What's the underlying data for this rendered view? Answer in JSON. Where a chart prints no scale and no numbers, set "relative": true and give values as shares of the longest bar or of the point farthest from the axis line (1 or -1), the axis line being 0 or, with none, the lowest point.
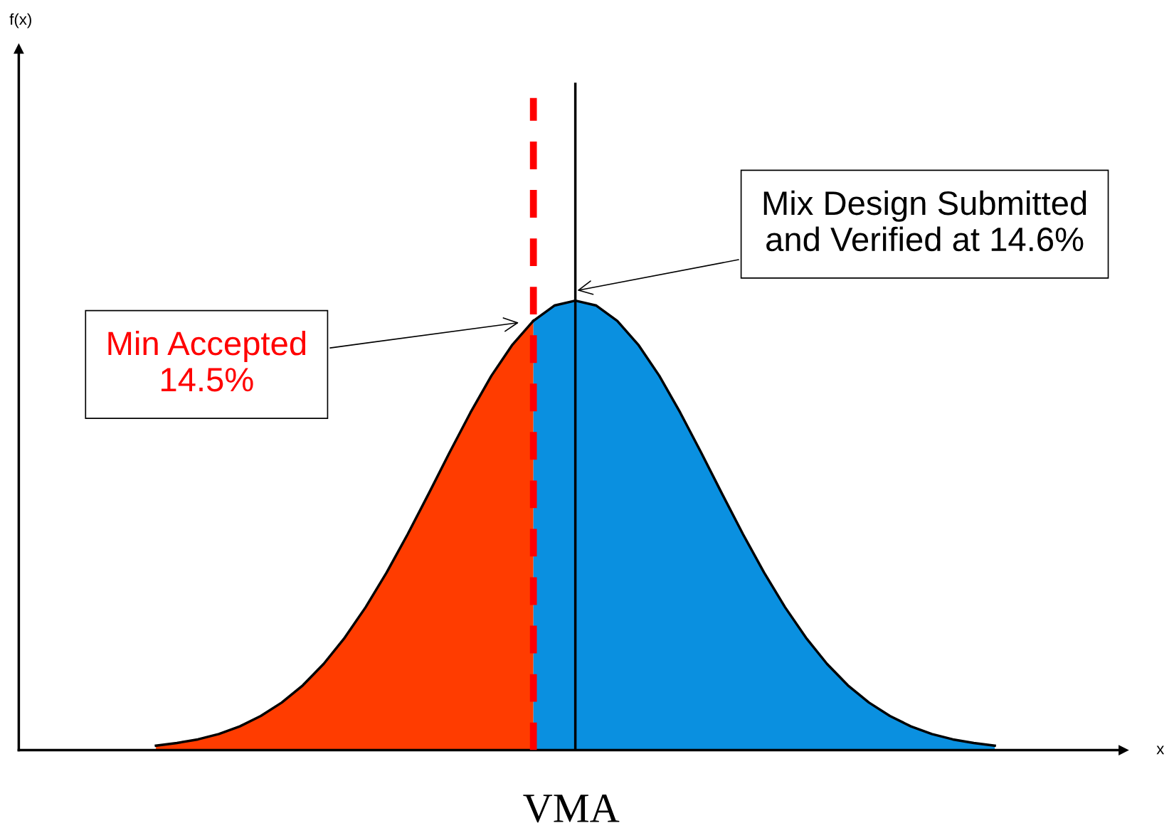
{
  "chart_data": {
    "type": "area",
    "relative": true,
    "xlabel": "VMA",
    "categories": [
      null,
      null,
      null,
      null,
      null,
      null,
      null,
      null,
      null,
      null,
      null,
      null,
      null,
      null,
      null,
      null,
      null,
      null,
      null,
      null,
      null,
      null,
      null,
      null,
      null,
      null,
      null,
      null,
      null,
      null,
      null,
      null,
      null,
      null,
      null,
      null,
      null,
      null,
      null,
      null,
      null
    ],
    "series": [
      {
        "color": "#ff3c00",
        "values": [
          0.01,
          0.016,
          0.024,
          0.036,
          0.053,
          0.076,
          0.106,
          0.144,
          0.192,
          0.25,
          0.318,
          0.395,
          0.48,
          0.57,
          0.662,
          0.751,
          0.833,
          0.902,
          0.955,
          null,
          null,
          null,
          null,
          null,
          null,
          null,
          null,
          null,
          null,
          null,
          null,
          null,
          null,
          null,
          null,
          null,
          null,
          null,
          null,
          null,
          null
        ]
      },
      {
        "color": "#0a90e0",
        "values": [
          null,
          null,
          null,
          null,
          null,
          null,
          null,
          null,
          null,
          null,
          null,
          null,
          null,
          null,
          null,
          null,
          null,
          null,
          0.955,
          0.989,
          1,
          0.989,
          0.955,
          0.902,
          0.833,
          0.751,
          0.662,
          0.57,
          0.48,
          0.395,
          0.318,
          0.25,
          0.192,
          0.144,
          0.106,
          0.076,
          0.053,
          0.036,
          0.024,
          0.016,
          0.01
        ]
      }
    ],
    "ref_lines": [
      {
        "axis": "x",
        "label": "Min Accepted\n14.5%",
        "color": "#ff0000",
        "line_style": "dashed"
      },
      {
        "axis": "x",
        "label": "Mix Design Submitted\nand Verified at 14.6%",
        "color": "#000000",
        "line_style": "solid"
      }
    ],
    "annotations": [
      "f(x)",
      "x"
    ]
  }
}
